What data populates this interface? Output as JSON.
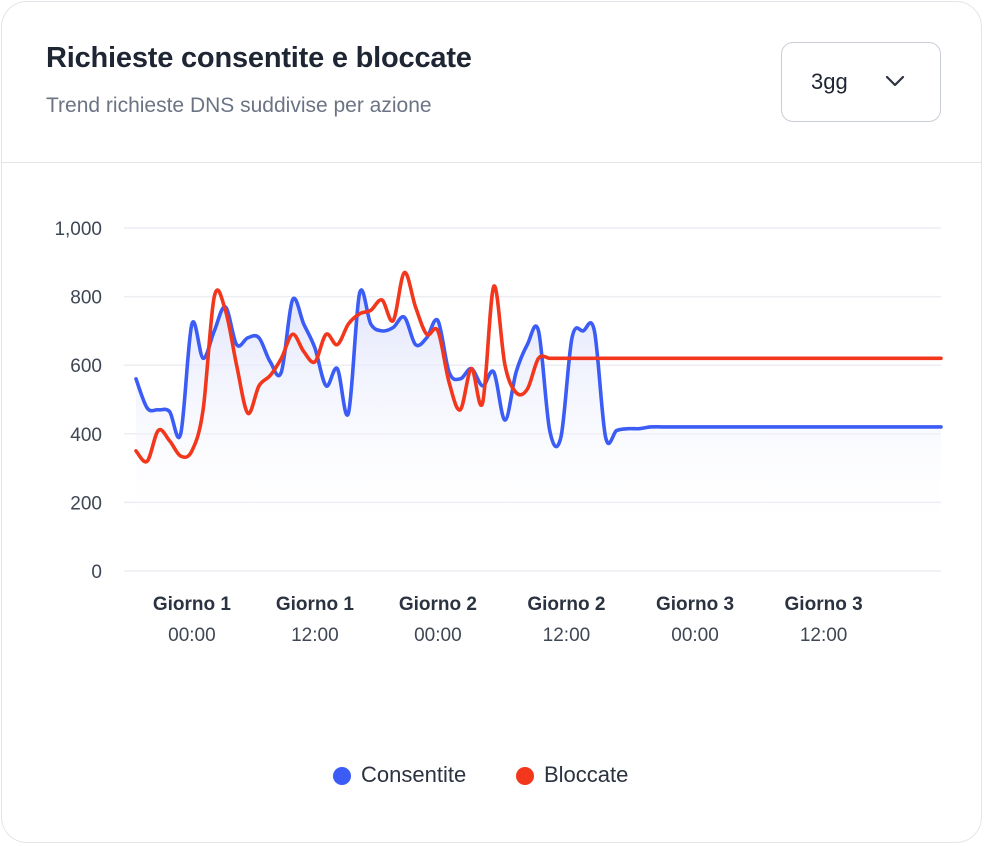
{
  "header": {
    "title": "Richieste consentite e bloccate",
    "subtitle": "Trend richieste DNS suddivise per azione"
  },
  "range_select": {
    "value": "3gg",
    "icon": "chevron-down-icon"
  },
  "colors": {
    "allowed": "#3b5cf5",
    "blocked": "#f2371d",
    "area_top": "#dfe3fb",
    "grid": "#eceef2",
    "axis_text": "#3f4654"
  },
  "chart_data": {
    "type": "line",
    "ylim": [
      0,
      1000
    ],
    "y_ticks": [
      "0",
      "200",
      "400",
      "600",
      "800",
      "1,000"
    ],
    "x_range": [
      -4,
      68
    ],
    "x_tick_labels": [
      {
        "x": 1,
        "day": "Giorno 1",
        "time": "00:00"
      },
      {
        "x": 12,
        "day": "Giorno 1",
        "time": "12:00"
      },
      {
        "x": 23,
        "day": "Giorno 2",
        "time": "00:00"
      },
      {
        "x": 34.5,
        "day": "Giorno 2",
        "time": "12:00"
      },
      {
        "x": 46,
        "day": "Giorno 3",
        "time": "00:00"
      },
      {
        "x": 57.5,
        "day": "Giorno 3",
        "time": "12:00"
      }
    ],
    "grid": true,
    "legend_position": "bottom-center",
    "x": [
      -4,
      -3,
      -2,
      -1,
      0,
      1,
      2,
      3,
      4,
      5,
      6,
      7,
      8,
      9,
      10,
      11,
      12,
      13,
      14,
      15,
      16,
      17,
      18,
      19,
      20,
      21,
      22,
      23,
      24,
      25,
      26,
      27,
      28,
      29,
      30,
      31,
      32,
      33,
      34,
      35,
      36,
      37,
      38,
      39,
      40,
      41,
      42,
      43,
      44,
      45,
      46,
      47,
      48,
      49,
      50,
      51,
      52,
      53,
      54,
      55,
      56,
      57,
      58,
      59,
      60,
      61,
      62,
      63,
      64,
      65,
      66,
      67,
      68
    ],
    "series": [
      {
        "name": "Consentite",
        "color": "#3b5cf5",
        "fill": true,
        "values": [
          560,
          475,
          470,
          465,
          400,
          720,
          620,
          700,
          770,
          660,
          680,
          680,
          610,
          580,
          790,
          720,
          650,
          540,
          590,
          460,
          810,
          720,
          700,
          710,
          740,
          660,
          680,
          730,
          580,
          560,
          590,
          540,
          580,
          440,
          580,
          660,
          700,
          410,
          390,
          680,
          700,
          700,
          390,
          410,
          415,
          415,
          420,
          420,
          420,
          420,
          420,
          420,
          420,
          420,
          420,
          420,
          420,
          420,
          420,
          420,
          420,
          420,
          420,
          420,
          420,
          420,
          420,
          420,
          420,
          420,
          420,
          420,
          420
        ]
      },
      {
        "name": "Bloccate",
        "color": "#f2371d",
        "fill": false,
        "values": [
          350,
          320,
          410,
          380,
          335,
          350,
          470,
          800,
          760,
          600,
          460,
          540,
          570,
          620,
          690,
          640,
          610,
          690,
          660,
          720,
          750,
          760,
          790,
          730,
          870,
          770,
          690,
          700,
          550,
          470,
          590,
          490,
          830,
          600,
          520,
          530,
          620,
          620,
          620,
          620,
          620,
          620,
          620,
          620,
          620,
          620,
          620,
          620,
          620,
          620,
          620,
          620,
          620,
          620,
          620,
          620,
          620,
          620,
          620,
          620,
          620,
          620,
          620,
          620,
          620,
          620,
          620,
          620,
          620,
          620,
          620,
          620,
          620
        ]
      }
    ]
  }
}
